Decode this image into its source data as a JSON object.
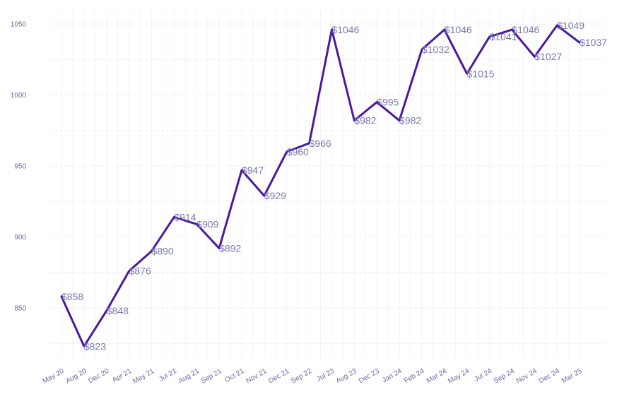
{
  "chart_data": {
    "type": "line",
    "title": "",
    "xlabel": "",
    "ylabel": "",
    "ylim": [
      810,
      1055
    ],
    "yticks": [
      850,
      900,
      950,
      1000,
      1050
    ],
    "grid": true,
    "legend": "none",
    "line_color": "#4a1a9e",
    "categories": [
      "May 20",
      "Aug 20",
      "Dec 20",
      "Apr 21",
      "May 21",
      "Jul 21",
      "Aug 21",
      "Sep 21",
      "Oct 21",
      "Nov 21",
      "Dec 21",
      "Sep 22",
      "Jul 23",
      "Aug 23",
      "Dec 23",
      "Jan 24",
      "Feb 24",
      "Mar 24",
      "May 24",
      "Jul 24",
      "Sep 24",
      "Nov 24",
      "Dec 24",
      "Mar 25"
    ],
    "values": [
      858,
      823,
      848,
      876,
      890,
      914,
      909,
      892,
      947,
      929,
      960,
      966,
      1046,
      982,
      995,
      982,
      1032,
      1046,
      1015,
      1041,
      1046,
      1027,
      1049,
      1037
    ],
    "labels": [
      "$858",
      "$823",
      "$848",
      "$876",
      "$890",
      "$914",
      "$909",
      "$892",
      "$947",
      "$929",
      "$960",
      "$966",
      "$1046",
      "$982",
      "$995",
      "$982",
      "$1032",
      "$1046",
      "$1015",
      "$1041",
      "$1046",
      "$1027",
      "$1049",
      "$1037"
    ]
  }
}
